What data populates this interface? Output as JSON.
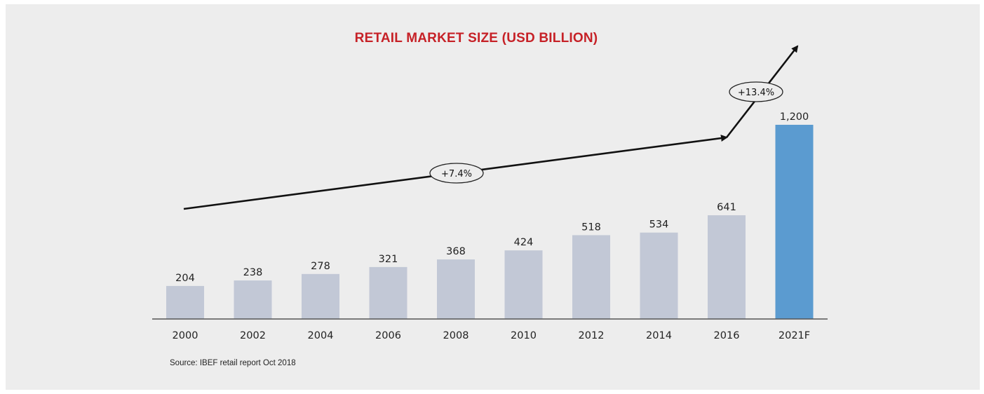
{
  "chart_data": {
    "type": "bar",
    "title": "RETAIL MARKET SIZE (USD BILLION)",
    "categories": [
      "2000",
      "2002",
      "2004",
      "2006",
      "2008",
      "2010",
      "2012",
      "2014",
      "2016",
      "2021F"
    ],
    "values": [
      204,
      238,
      278,
      321,
      368,
      424,
      518,
      534,
      641,
      1200
    ],
    "value_labels": [
      "204",
      "238",
      "278",
      "321",
      "368",
      "424",
      "518",
      "534",
      "641",
      "1,200"
    ],
    "xlabel": "",
    "ylabel": "",
    "ylim": [
      0,
      1200
    ],
    "grid": false,
    "legend": "none",
    "colors": {
      "bar": "#c2c8d6",
      "forecast_bar": "#5b9bd0",
      "title": "#c62127",
      "axis": "#555555",
      "arrow": "#111111"
    },
    "annotations": [
      {
        "text": "+7.4%",
        "from": "2000",
        "to": "2016"
      },
      {
        "text": "+13.4%",
        "from": "2016",
        "to": "2021F"
      }
    ]
  },
  "source": "Source: IBEF retail report Oct 2018"
}
